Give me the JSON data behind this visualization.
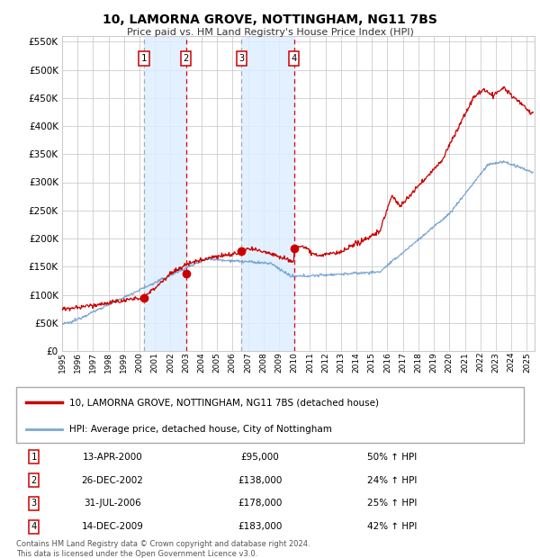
{
  "title": "10, LAMORNA GROVE, NOTTINGHAM, NG11 7BS",
  "subtitle": "Price paid vs. HM Land Registry's House Price Index (HPI)",
  "footer": "Contains HM Land Registry data © Crown copyright and database right 2024.\nThis data is licensed under the Open Government Licence v3.0.",
  "legend_line1": "10, LAMORNA GROVE, NOTTINGHAM, NG11 7BS (detached house)",
  "legend_line2": "HPI: Average price, detached house, City of Nottingham",
  "sales": [
    {
      "num": 1,
      "date_label": "13-APR-2000",
      "price": 95000,
      "pct": "50% ↑ HPI",
      "year_x": 2000.29
    },
    {
      "num": 2,
      "date_label": "26-DEC-2002",
      "price": 138000,
      "pct": "24% ↑ HPI",
      "year_x": 2002.99
    },
    {
      "num": 3,
      "date_label": "31-JUL-2006",
      "price": 178000,
      "pct": "25% ↑ HPI",
      "year_x": 2006.58
    },
    {
      "num": 4,
      "date_label": "14-DEC-2009",
      "price": 183000,
      "pct": "42% ↑ HPI",
      "year_x": 2009.96
    }
  ],
  "price_labels": [
    "£95,000",
    "£138,000",
    "£178,000",
    "£183,000"
  ],
  "xmin": 1995.0,
  "xmax": 2025.5,
  "ymin": 0,
  "ymax": 560000,
  "yticks": [
    0,
    50000,
    100000,
    150000,
    200000,
    250000,
    300000,
    350000,
    400000,
    450000,
    500000,
    550000
  ],
  "background_color": "#ffffff",
  "plot_bg": "#ffffff",
  "grid_color": "#cccccc",
  "red_line_color": "#cc0000",
  "blue_line_color": "#6699cc",
  "shade_color": "#ddeeff",
  "vline_red": "#dd0000",
  "vline_gray": "#aaaaaa",
  "number_box_color": "#cc0000"
}
